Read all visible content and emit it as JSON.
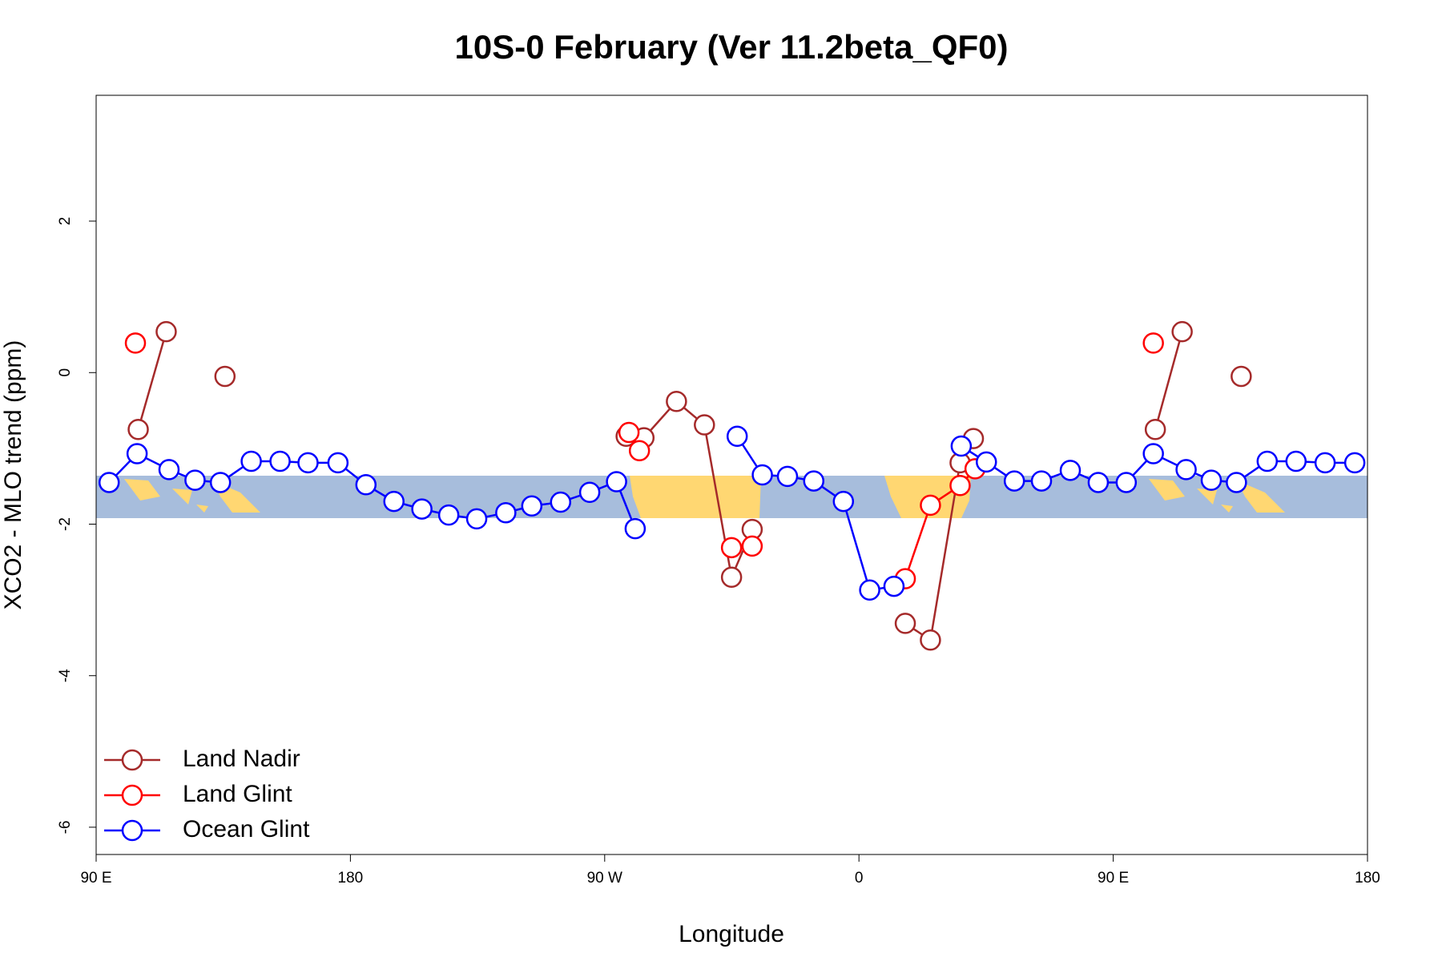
{
  "chart_data": {
    "type": "line",
    "title": "10S-0 February (Ver 11.2beta_QF0)",
    "x_label": "Longitude",
    "y_label": "XCO2 - MLO trend (ppm)",
    "xlim": [
      90,
      540
    ],
    "ylim": [
      -6.36,
      3.66
    ],
    "xticks": [
      {
        "value": 90,
        "label": "90 E"
      },
      180,
      {
        "value": 270,
        "label": "90 W"
      },
      {
        "value": 360,
        "label": "0"
      },
      {
        "value": 450,
        "label": "90 E"
      },
      {
        "value": 540,
        "label": "180"
      }
    ],
    "yticks": [
      -6,
      -4,
      -2,
      0,
      2
    ],
    "legend": "bottomleft",
    "series": [
      {
        "name": "Land Nadir",
        "color": "#a52a2a",
        "x": [
          104.9,
          114.8,
          null,
          135.6,
          null,
          277.6,
          null,
          283.9,
          295.4,
          305.3,
          314.9,
          322.2,
          null,
          376.4,
          385.3,
          395.8,
          400.5,
          null,
          464.9,
          474.4,
          null,
          495.3
        ],
        "values": [
          -0.75,
          0.54,
          null,
          -0.05,
          null,
          -0.84,
          null,
          -0.86,
          -0.38,
          -0.69,
          -2.7,
          -2.07,
          null,
          -3.31,
          -3.53,
          -1.19,
          -0.87,
          null,
          -0.75,
          0.54,
          null,
          -0.05
        ]
      },
      {
        "name": "Land Glint",
        "color": "#ff0000",
        "x": [
          103.9,
          null,
          278.6,
          282.3,
          null,
          314.9,
          322.2,
          null,
          376.4,
          385.3,
          395.8,
          401.1,
          null,
          464.2
        ],
        "values": [
          0.39,
          null,
          -0.79,
          -1.03,
          null,
          -2.31,
          -2.29,
          null,
          -2.72,
          -1.75,
          -1.49,
          -1.27,
          null,
          0.39
        ]
      },
      {
        "name": "Ocean Glint",
        "color": "#0000ff",
        "x": [
          94.6,
          104.5,
          115.8,
          125.0,
          134.0,
          144.9,
          155.1,
          165.0,
          175.6,
          185.5,
          195.4,
          205.3,
          214.8,
          224.7,
          235.0,
          244.2,
          254.4,
          264.7,
          274.2,
          280.8,
          null,
          316.9,
          325.8,
          334.7,
          344.0,
          354.5,
          363.8,
          372.4,
          null,
          396.2,
          405.1,
          415.0,
          424.6,
          434.8,
          444.7,
          454.6,
          464.2,
          475.8,
          484.7,
          493.6,
          504.5,
          514.7,
          525.0,
          535.5
        ],
        "values": [
          -1.45,
          -1.07,
          -1.28,
          -1.42,
          -1.45,
          -1.17,
          -1.17,
          -1.19,
          -1.19,
          -1.48,
          -1.7,
          -1.8,
          -1.88,
          -1.93,
          -1.85,
          -1.76,
          -1.71,
          -1.58,
          -1.44,
          -2.06,
          null,
          -0.84,
          -1.35,
          -1.37,
          -1.43,
          -1.7,
          -2.87,
          -2.82,
          null,
          -0.97,
          -1.18,
          -1.43,
          -1.43,
          -1.29,
          -1.45,
          -1.45,
          -1.07,
          -1.28,
          -1.42,
          -1.45,
          -1.17,
          -1.17,
          -1.19,
          -1.19
        ]
      }
    ]
  }
}
